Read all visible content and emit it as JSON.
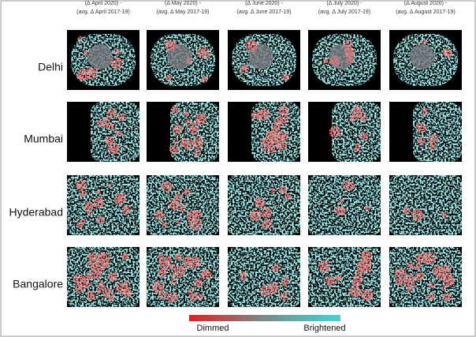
{
  "columns": [
    {
      "line1": "(Δ April 2020) -",
      "line2": "(avg. Δ April 2017-19)"
    },
    {
      "line1": "(Δ May 2020) -",
      "line2": "(avg. Δ May 2017-19)"
    },
    {
      "line1": "(Δ June 2020) -",
      "line2": "(avg. Δ June 2017-19)"
    },
    {
      "line1": "(Δ July 2020) -",
      "line2": "(avg. Δ July 2017-19)"
    },
    {
      "line1": "(Δ August 2020) -",
      "line2": "(avg. Δ August 2017-19)"
    }
  ],
  "rows": [
    "Delhi",
    "Mumbai",
    "Hyderabad",
    "Bangalore"
  ],
  "legend": {
    "low": "Dimmed",
    "high": "Brightened"
  }
}
